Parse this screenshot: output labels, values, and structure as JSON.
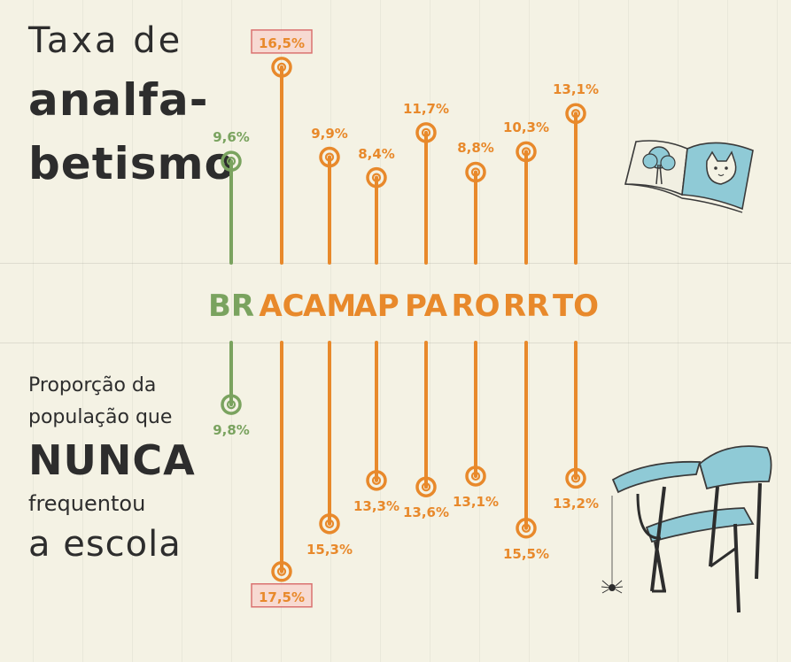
{
  "title_lines": [
    "Taxa de",
    "analfa-",
    "betismo"
  ],
  "subtitle_lines": [
    "Proporção da",
    "população que",
    "NUNCA",
    "frequentou",
    "a escola"
  ],
  "colors": {
    "brazil": "#7aa35f",
    "states": "#e8892b",
    "highlight_box": "#d65c5c",
    "text": "#2d2d2d"
  },
  "chart_data": {
    "type": "lollipop",
    "categories": [
      "BR",
      "AC",
      "AM",
      "AP",
      "PA",
      "RO",
      "RR",
      "TO"
    ],
    "series": [
      {
        "name": "Taxa de analfabetismo",
        "values": [
          9.6,
          16.5,
          9.9,
          8.4,
          11.7,
          8.8,
          10.3,
          13.1
        ],
        "labels": [
          "9,6%",
          "16,5%",
          "9,9%",
          "8,4%",
          "11,7%",
          "8,8%",
          "10,3%",
          "13,1%"
        ]
      },
      {
        "name": "Proporção da população que nunca frequentou a escola",
        "values": [
          9.8,
          17.5,
          15.3,
          13.3,
          13.6,
          13.1,
          15.5,
          13.2
        ],
        "labels": [
          "9,8%",
          "17,5%",
          "15,3%",
          "13,3%",
          "13,6%",
          "13,1%",
          "15,5%",
          "13,2%"
        ]
      }
    ],
    "highlighted_category": "AC"
  },
  "illustrations": [
    "book-icon",
    "school-desk-icon",
    "spider-icon"
  ]
}
